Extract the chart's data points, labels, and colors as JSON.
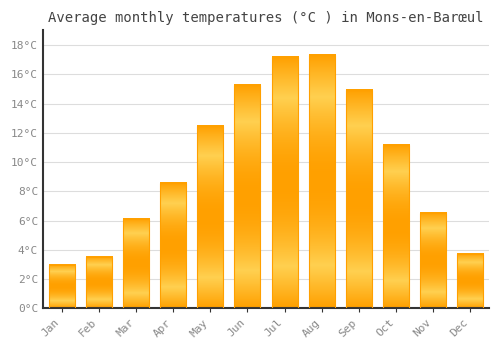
{
  "title": "Average monthly temperatures (°C ) in Mons-en-Barœul",
  "months": [
    "Jan",
    "Feb",
    "Mar",
    "Apr",
    "May",
    "Jun",
    "Jul",
    "Aug",
    "Sep",
    "Oct",
    "Nov",
    "Dec"
  ],
  "values": [
    3.0,
    3.5,
    6.1,
    8.6,
    12.5,
    15.3,
    17.2,
    17.3,
    14.9,
    11.2,
    6.5,
    3.7
  ],
  "bar_color_center": "#FFD050",
  "bar_color_edge": "#FFA000",
  "background_color": "#FFFFFF",
  "plot_bg_color": "#FFFFFF",
  "grid_color": "#DDDDDD",
  "tick_label_color": "#888888",
  "title_color": "#444444",
  "spine_color": "#333333",
  "ylim": [
    0,
    19
  ],
  "yticks": [
    0,
    2,
    4,
    6,
    8,
    10,
    12,
    14,
    16,
    18
  ],
  "title_fontsize": 10,
  "tick_fontsize": 8,
  "font_family": "monospace"
}
